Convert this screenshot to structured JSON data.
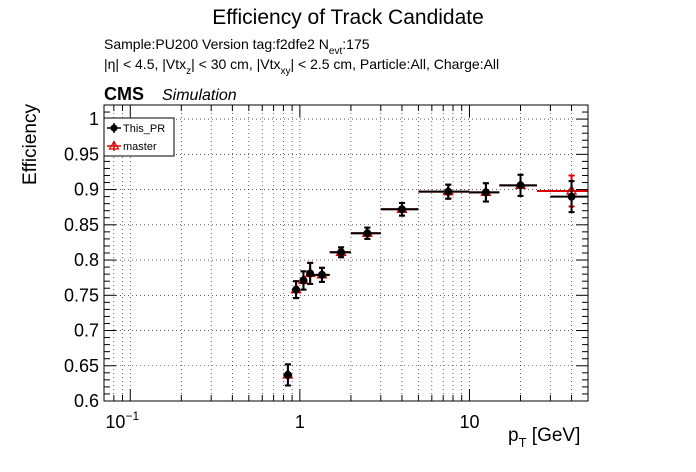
{
  "title": "Efficiency of Track Candidate",
  "info": {
    "line1_prefix": "Sample:PU200   Version tag:f2dfe2  N",
    "line1_sub": "evt",
    "line1_suffix": ":175",
    "line2_a": "|η| < 4.5, |Vtx",
    "line2_sub1": "z",
    "line2_b": "| < 30 cm, |Vtx",
    "line2_sub2": "xy",
    "line2_c": "| < 2.5 cm, Particle:All, Charge:All"
  },
  "cms_label": "CMS",
  "simulation_label": "Simulation",
  "colors": {
    "this_pr": "#000000",
    "master": "#dd0000",
    "grid": "#000000"
  },
  "chart_data": {
    "type": "scatter",
    "title": "Efficiency of Track Candidate",
    "xlabel_main": "p",
    "xlabel_sub": "T",
    "xlabel_unit": " [GeV]",
    "ylabel": "Efficiency",
    "xscale": "log",
    "xlim": [
      0.07,
      50
    ],
    "ylim": [
      0.6,
      1.02
    ],
    "grid": true,
    "legend_position": "top-left",
    "x_ticks": [
      {
        "value": 0.1,
        "base": "10",
        "exp": "−1"
      },
      {
        "value": 1,
        "base": "1",
        "exp": ""
      },
      {
        "value": 10,
        "base": "10",
        "exp": ""
      }
    ],
    "y_ticks": [
      {
        "value": 0.6,
        "label": "0.6"
      },
      {
        "value": 0.65,
        "label": "0.65"
      },
      {
        "value": 0.7,
        "label": "0.7"
      },
      {
        "value": 0.75,
        "label": "0.75"
      },
      {
        "value": 0.8,
        "label": "0.8"
      },
      {
        "value": 0.85,
        "label": "0.85"
      },
      {
        "value": 0.9,
        "label": "0.9"
      },
      {
        "value": 0.95,
        "label": "0.95"
      },
      {
        "value": 1,
        "label": "1"
      }
    ],
    "series": [
      {
        "name": "This_PR",
        "marker": "circle",
        "points": [
          {
            "x": 0.85,
            "xlo": 0.8,
            "xhi": 0.9,
            "y": 0.637,
            "err": 0.015
          },
          {
            "x": 0.95,
            "xlo": 0.9,
            "xhi": 1.0,
            "y": 0.758,
            "err": 0.012
          },
          {
            "x": 1.05,
            "xlo": 1.0,
            "xhi": 1.1,
            "y": 0.771,
            "err": 0.013
          },
          {
            "x": 1.15,
            "xlo": 1.1,
            "xhi": 1.2,
            "y": 0.781,
            "err": 0.015
          },
          {
            "x": 1.35,
            "xlo": 1.2,
            "xhi": 1.5,
            "y": 0.779,
            "err": 0.01
          },
          {
            "x": 1.75,
            "xlo": 1.5,
            "xhi": 2.0,
            "y": 0.811,
            "err": 0.007
          },
          {
            "x": 2.5,
            "xlo": 2.0,
            "xhi": 3.0,
            "y": 0.838,
            "err": 0.008
          },
          {
            "x": 4.0,
            "xlo": 3.0,
            "xhi": 5.0,
            "y": 0.872,
            "err": 0.009
          },
          {
            "x": 7.5,
            "xlo": 5.0,
            "xhi": 10.0,
            "y": 0.897,
            "err": 0.01
          },
          {
            "x": 12.5,
            "xlo": 10.0,
            "xhi": 15.0,
            "y": 0.896,
            "err": 0.013
          },
          {
            "x": 20.0,
            "xlo": 15.0,
            "xhi": 25.0,
            "y": 0.906,
            "err": 0.015
          },
          {
            "x": 40.0,
            "xlo": 30.0,
            "xhi": 50.0,
            "y": 0.89,
            "err": 0.022
          }
        ]
      },
      {
        "name": "master",
        "marker": "triangle-open",
        "points": [
          {
            "x": 0.85,
            "xlo": 0.8,
            "xhi": 0.9,
            "y": 0.637,
            "err": 0.015
          },
          {
            "x": 0.95,
            "xlo": 0.9,
            "xhi": 1.0,
            "y": 0.758,
            "err": 0.012
          },
          {
            "x": 1.05,
            "xlo": 1.0,
            "xhi": 1.1,
            "y": 0.771,
            "err": 0.013
          },
          {
            "x": 1.15,
            "xlo": 1.1,
            "xhi": 1.2,
            "y": 0.781,
            "err": 0.015
          },
          {
            "x": 1.35,
            "xlo": 1.2,
            "xhi": 1.5,
            "y": 0.779,
            "err": 0.01
          },
          {
            "x": 1.75,
            "xlo": 1.5,
            "xhi": 2.0,
            "y": 0.811,
            "err": 0.007
          },
          {
            "x": 2.5,
            "xlo": 2.0,
            "xhi": 3.0,
            "y": 0.838,
            "err": 0.008
          },
          {
            "x": 4.0,
            "xlo": 3.0,
            "xhi": 5.0,
            "y": 0.872,
            "err": 0.009
          },
          {
            "x": 7.5,
            "xlo": 5.0,
            "xhi": 10.0,
            "y": 0.897,
            "err": 0.01
          },
          {
            "x": 12.5,
            "xlo": 10.0,
            "xhi": 15.0,
            "y": 0.896,
            "err": 0.013
          },
          {
            "x": 20.0,
            "xlo": 15.0,
            "xhi": 25.0,
            "y": 0.906,
            "err": 0.015
          },
          {
            "x": 40.0,
            "xlo": 25.0,
            "xhi": 50.0,
            "y": 0.898,
            "err": 0.022
          }
        ]
      }
    ]
  }
}
